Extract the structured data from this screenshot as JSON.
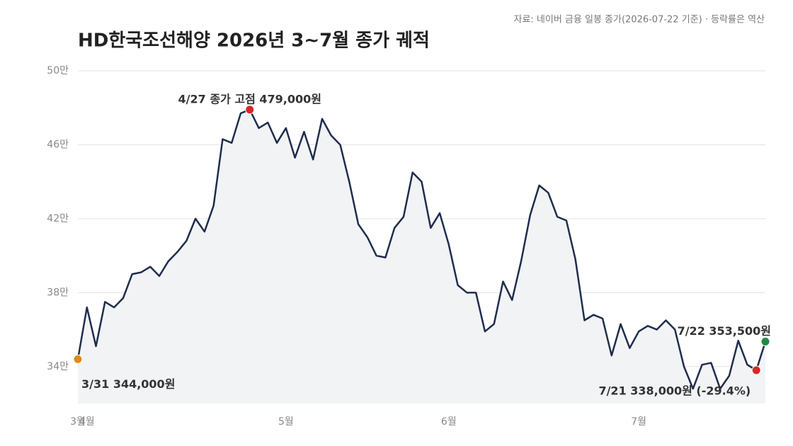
{
  "chart_data": {
    "type": "line",
    "title": "HD한국조선해양 2026년 3~7월 종가 궤적",
    "source": "자료: 네이버 금융 일봉 종가(2026-07-22 기준) · 등락률은 역산",
    "categories": [
      "3월",
      "4월",
      null,
      null,
      null,
      null,
      null,
      null,
      null,
      null,
      null,
      null,
      null,
      null,
      null,
      null,
      null,
      null,
      null,
      null,
      null,
      null,
      null,
      "5월",
      null,
      null,
      null,
      null,
      null,
      null,
      null,
      null,
      null,
      null,
      null,
      null,
      null,
      null,
      null,
      null,
      null,
      "6월",
      null,
      null,
      null,
      null,
      null,
      null,
      null,
      null,
      null,
      null,
      null,
      null,
      null,
      null,
      null,
      null,
      null,
      null,
      null,
      null,
      "7월",
      null,
      null,
      null,
      null,
      null,
      null,
      null,
      null,
      null,
      null,
      null,
      null,
      null,
      null
    ],
    "series": [
      {
        "color": "#1f2d4d",
        "fill": "#f2f3f5",
        "values": [
          344000,
          372000,
          351000,
          375000,
          372000,
          377000,
          390000,
          391000,
          394000,
          389000,
          397000,
          402000,
          408000,
          420000,
          413000,
          427000,
          463000,
          461000,
          477000,
          479000,
          469000,
          472000,
          461000,
          469000,
          453000,
          467000,
          452000,
          474000,
          465000,
          460000,
          440000,
          417000,
          410000,
          400000,
          399000,
          415000,
          421000,
          445000,
          440000,
          415000,
          423000,
          406000,
          384000,
          380000,
          380000,
          359000,
          363000,
          386000,
          376000,
          397000,
          422000,
          438000,
          434000,
          421000,
          419000,
          398000,
          365000,
          368000,
          366000,
          346000,
          363000,
          350000,
          359000,
          362000,
          360000,
          365000,
          360000,
          340000,
          328000,
          341000,
          342000,
          328000,
          335000,
          354000,
          341000,
          338000,
          353500
        ]
      }
    ],
    "ylim": [
      320000,
      500000
    ],
    "yticks": [
      {
        "value": 340000,
        "label": "34만"
      },
      {
        "value": 380000,
        "label": "38만"
      },
      {
        "value": 420000,
        "label": "42만"
      },
      {
        "value": 460000,
        "label": "46만"
      },
      {
        "value": 500000,
        "label": "50만"
      }
    ],
    "grid": true,
    "annotations": [
      {
        "index": 0,
        "text": "3/31 344,000원",
        "color": "#e08a1e"
      },
      {
        "index": 19,
        "text": "4/27 종가 고점 479,000원",
        "color": "#d62728"
      },
      {
        "index": 75,
        "text": "7/21 338,000원 (-29.4%)",
        "color": "#d62728"
      },
      {
        "index": 76,
        "text": "7/22 353,500원",
        "color": "#1e8a44"
      }
    ]
  }
}
